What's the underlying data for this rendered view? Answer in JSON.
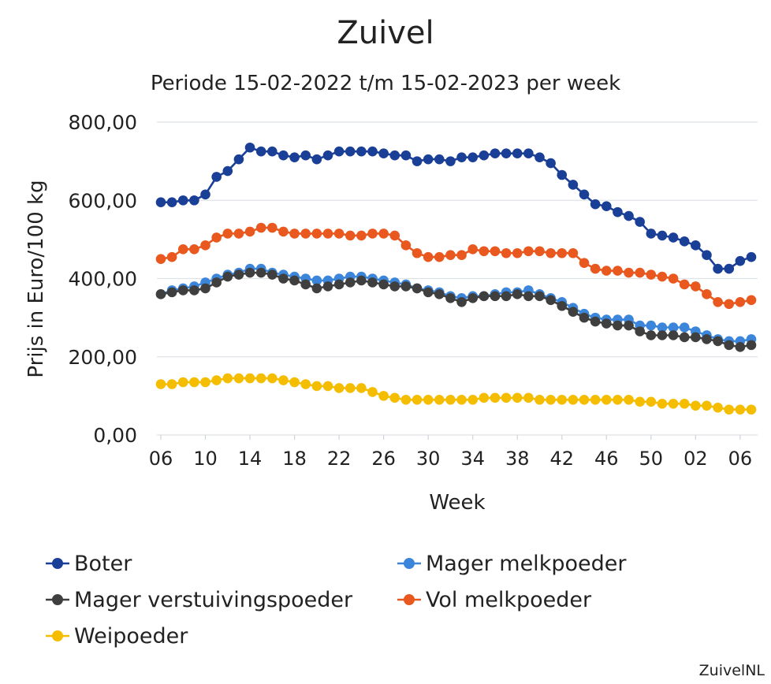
{
  "chart_data": {
    "type": "line",
    "title": "Zuivel",
    "subtitle": "Periode 15-02-2022 t/m 15-02-2023 per week",
    "xlabel": "Week",
    "ylabel": "Prijs in Euro/100 kg",
    "ylim": [
      0,
      800
    ],
    "yticks": [
      "0,00",
      "200,00",
      "400,00",
      "600,00",
      "800,00"
    ],
    "ytick_values": [
      0,
      200,
      400,
      600,
      800
    ],
    "grid": true,
    "legend_position": "bottom",
    "x": [
      "06",
      "07",
      "08",
      "09",
      "10",
      "11",
      "12",
      "13",
      "14",
      "15",
      "16",
      "17",
      "18",
      "19",
      "20",
      "21",
      "22",
      "23",
      "24",
      "25",
      "26",
      "27",
      "28",
      "29",
      "30",
      "31",
      "32",
      "33",
      "34",
      "35",
      "36",
      "37",
      "38",
      "39",
      "40",
      "41",
      "42",
      "43",
      "44",
      "45",
      "46",
      "47",
      "48",
      "49",
      "50",
      "51",
      "52",
      "01",
      "02",
      "03",
      "04",
      "05",
      "06",
      "07"
    ],
    "xticks": [
      "06",
      "10",
      "14",
      "18",
      "22",
      "26",
      "30",
      "34",
      "38",
      "42",
      "46",
      "50",
      "02",
      "06"
    ],
    "series": [
      {
        "name": "Boter",
        "color": "#1a3f97",
        "values": [
          595,
          595,
          600,
          600,
          615,
          660,
          675,
          705,
          735,
          725,
          725,
          715,
          710,
          715,
          705,
          715,
          725,
          725,
          725,
          725,
          720,
          715,
          715,
          700,
          705,
          705,
          700,
          710,
          710,
          715,
          720,
          720,
          720,
          720,
          710,
          695,
          665,
          640,
          615,
          590,
          585,
          570,
          560,
          545,
          515,
          510,
          505,
          495,
          485,
          460,
          425,
          425,
          445,
          455
        ]
      },
      {
        "name": "Mager melkpoeder",
        "color": "#3b86db",
        "values": [
          360,
          370,
          375,
          380,
          390,
          400,
          410,
          415,
          425,
          425,
          415,
          410,
          405,
          400,
          395,
          395,
          400,
          405,
          405,
          400,
          395,
          390,
          385,
          375,
          370,
          365,
          355,
          350,
          355,
          355,
          360,
          365,
          365,
          370,
          360,
          350,
          340,
          325,
          310,
          300,
          295,
          295,
          295,
          280,
          280,
          275,
          275,
          275,
          265,
          255,
          245,
          240,
          240,
          245
        ]
      },
      {
        "name": "Mager verstuivingspoeder",
        "color": "#3f3f3f",
        "values": [
          360,
          365,
          370,
          370,
          375,
          390,
          405,
          410,
          415,
          415,
          410,
          400,
          395,
          385,
          375,
          380,
          385,
          390,
          395,
          390,
          385,
          380,
          380,
          375,
          365,
          360,
          350,
          340,
          350,
          355,
          355,
          355,
          360,
          355,
          355,
          345,
          330,
          315,
          300,
          290,
          285,
          280,
          280,
          265,
          255,
          255,
          255,
          250,
          250,
          245,
          240,
          230,
          225,
          230
        ]
      },
      {
        "name": "Vol melkpoeder",
        "color": "#e8581f",
        "values": [
          450,
          455,
          475,
          475,
          485,
          505,
          515,
          515,
          520,
          530,
          530,
          520,
          515,
          515,
          515,
          515,
          515,
          510,
          510,
          515,
          515,
          510,
          485,
          465,
          455,
          455,
          460,
          460,
          475,
          470,
          470,
          465,
          465,
          470,
          470,
          465,
          465,
          465,
          440,
          425,
          420,
          420,
          415,
          415,
          410,
          405,
          400,
          385,
          380,
          360,
          340,
          335,
          340,
          345
        ]
      },
      {
        "name": "Weipoeder",
        "color": "#f5bd00",
        "values": [
          130,
          130,
          135,
          135,
          135,
          140,
          145,
          145,
          145,
          145,
          145,
          140,
          135,
          130,
          125,
          125,
          120,
          120,
          120,
          110,
          100,
          95,
          90,
          90,
          90,
          90,
          90,
          90,
          90,
          95,
          95,
          95,
          95,
          95,
          90,
          90,
          90,
          90,
          90,
          90,
          90,
          90,
          90,
          85,
          85,
          80,
          80,
          80,
          75,
          75,
          70,
          65,
          65,
          65
        ]
      }
    ],
    "source": "ZuivelNL"
  }
}
